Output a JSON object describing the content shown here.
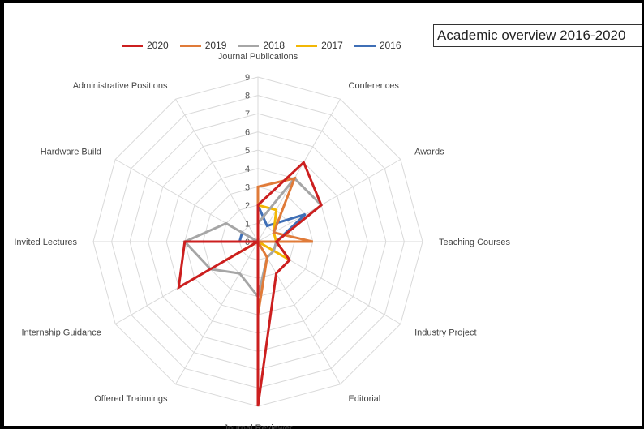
{
  "chart_data": {
    "type": "radar",
    "title": "Academic overview 2016-2020",
    "axes": [
      "Journal Publications",
      "Conferences",
      "Awards",
      "Teaching Courses",
      "Industry Project",
      "Editorial",
      "Journal Reviewer",
      "Offered Trainnings",
      "Internship Guidance",
      "Invited Lectures",
      "Hardware Build",
      "Administrative Positions"
    ],
    "ticks": [
      "0",
      "1",
      "2",
      "3",
      "4",
      "5",
      "6",
      "7",
      "8",
      "9"
    ],
    "rmax": 9,
    "legend_position": "top-left",
    "grid": true,
    "series": [
      {
        "name": "2020",
        "color": "#cc1f1f",
        "values": [
          2,
          5,
          4,
          1,
          2,
          2,
          9,
          0,
          5,
          4,
          0,
          0
        ]
      },
      {
        "name": "2019",
        "color": "#e07b39",
        "values": [
          3,
          4,
          1,
          3,
          0,
          1,
          4,
          0,
          2,
          0,
          0,
          0
        ]
      },
      {
        "name": "2018",
        "color": "#a6a6a6",
        "values": [
          1,
          4,
          4,
          1,
          1,
          1,
          3,
          2,
          3,
          4,
          2,
          0
        ]
      },
      {
        "name": "2017",
        "color": "#f2b705",
        "values": [
          2,
          2,
          1,
          1,
          2,
          0,
          0,
          0,
          2,
          0,
          0,
          0
        ]
      },
      {
        "name": "2016",
        "color": "#3f6fb6",
        "values": [
          2,
          1,
          3,
          1,
          0,
          0,
          1,
          0,
          0,
          1,
          1,
          0
        ]
      }
    ]
  }
}
